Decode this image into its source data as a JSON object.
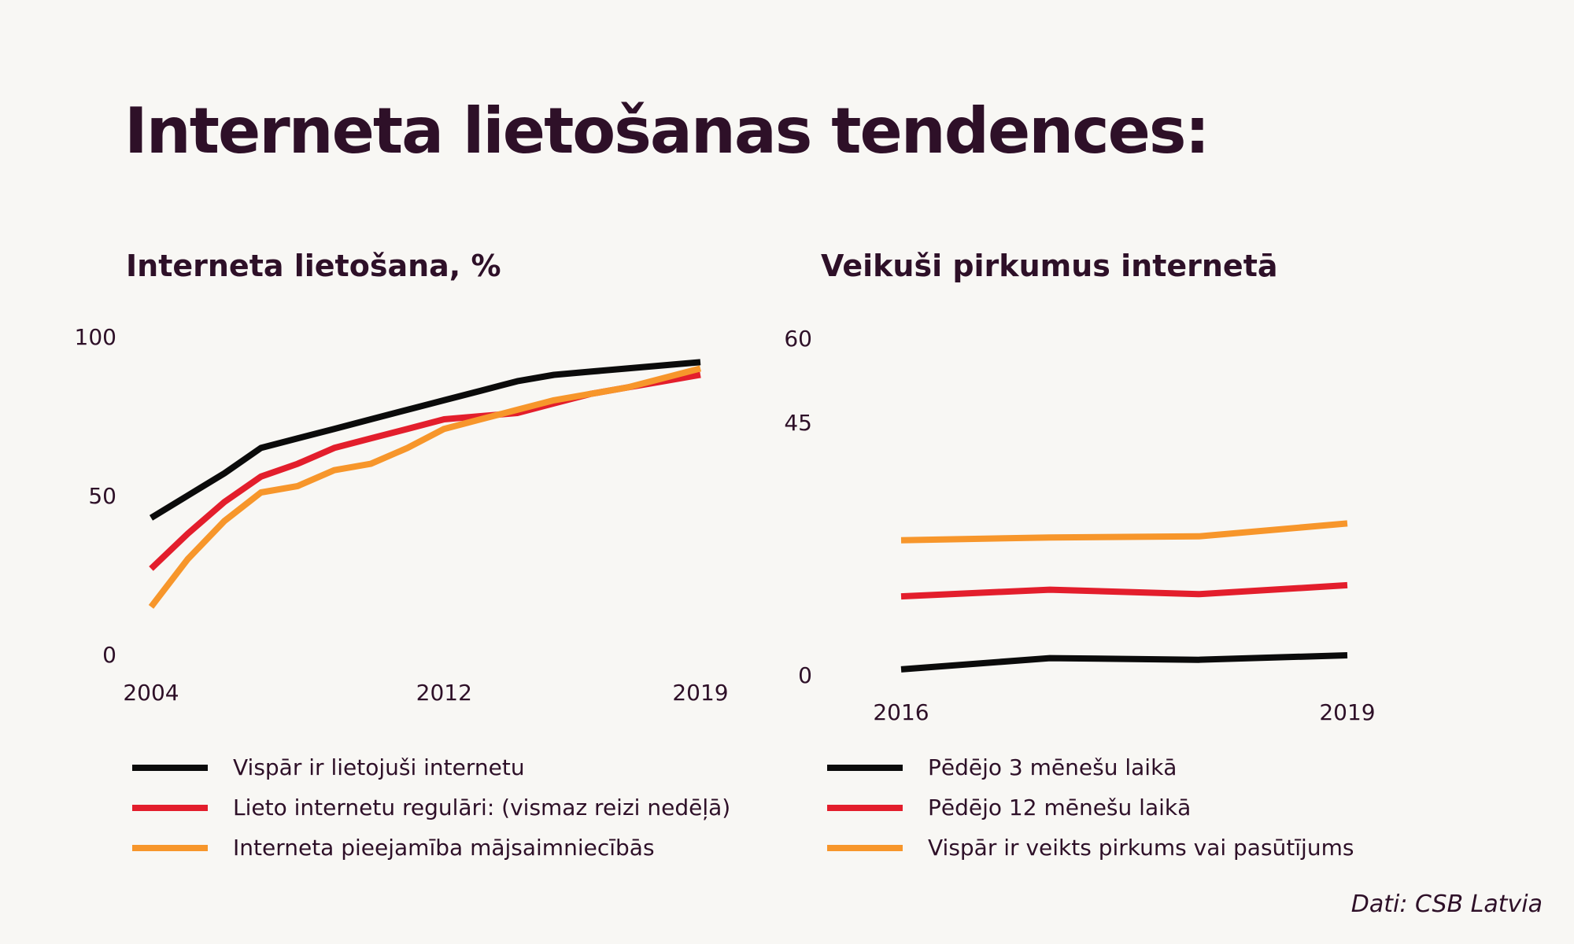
{
  "title": "Interneta lietošanas tendences:",
  "source": "Dati: CSB Latvia",
  "colors": {
    "black": "#0b0b0b",
    "red": "#e31e2c",
    "orange": "#f7962b",
    "text": "#2e1028",
    "background": "#f8f7f4"
  },
  "chart_data": [
    {
      "type": "line",
      "title": "Interneta lietošana, %",
      "xlabel": "",
      "ylabel": "",
      "x": [
        2004,
        2005,
        2006,
        2007,
        2008,
        2009,
        2010,
        2011,
        2012,
        2013,
        2014,
        2015,
        2016,
        2017,
        2018,
        2019
      ],
      "xlim": [
        2004,
        2019
      ],
      "ylim": [
        0,
        100
      ],
      "y_ticks": [
        "0",
        "50",
        "100"
      ],
      "y_tick_values": [
        0,
        50,
        100
      ],
      "x_ticks": [
        "2004",
        "2012",
        "2019"
      ],
      "x_tick_values": [
        2004,
        2012,
        2019
      ],
      "grid": false,
      "series": [
        {
          "name": "Vispār ir lietojuši internetu",
          "color": "#0b0b0b",
          "values": [
            43,
            50,
            57,
            65,
            68,
            71,
            74,
            77,
            80,
            83,
            86,
            88,
            89,
            90,
            91,
            92
          ]
        },
        {
          "name": "Lieto internetu regulāri: (vismaz reizi nedēļā)",
          "color": "#e31e2c",
          "values": [
            27,
            38,
            48,
            56,
            60,
            65,
            68,
            71,
            74,
            75,
            76,
            79,
            82,
            84,
            86,
            88
          ]
        },
        {
          "name": "Interneta pieejamība mājsaimniecībās",
          "color": "#f7962b",
          "values": [
            15,
            30,
            42,
            51,
            53,
            58,
            60,
            65,
            71,
            74,
            77,
            80,
            82,
            84,
            87,
            90
          ]
        }
      ]
    },
    {
      "type": "line",
      "title": "Veikuši pirkumus internetā",
      "xlabel": "",
      "ylabel": "",
      "x": [
        2016,
        2017,
        2018,
        2019
      ],
      "xlim": [
        2016,
        2019
      ],
      "ylim": [
        0,
        60
      ],
      "y_ticks": [
        "0",
        "45",
        "60"
      ],
      "y_tick_values": [
        0,
        45,
        60
      ],
      "x_ticks": [
        "2016",
        "2019"
      ],
      "x_tick_values": [
        2016,
        2019
      ],
      "grid": false,
      "series": [
        {
          "name": "Pēdējo 3 mēnešu laikā",
          "color": "#0b0b0b",
          "values": [
            1,
            3,
            2.7,
            3.5
          ]
        },
        {
          "name": "Pēdējo 12 mēnešu laikā",
          "color": "#e31e2c",
          "values": [
            14,
            15.2,
            14.4,
            16
          ]
        },
        {
          "name": "Vispār ir veikts pirkums vai pasūtījums",
          "color": "#f7962b",
          "values": [
            24,
            24.5,
            24.7,
            27
          ]
        }
      ]
    }
  ]
}
